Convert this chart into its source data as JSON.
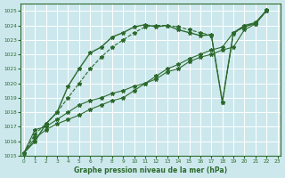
{
  "bg_color": "#cce8ed",
  "grid_color": "#ffffff",
  "line_color": "#2d6a2d",
  "xlabel": "Graphe pression niveau de la mer (hPa)",
  "ylim": [
    1015,
    1025.5
  ],
  "xlim": [
    -0.3,
    23.3
  ],
  "yticks": [
    1015,
    1016,
    1017,
    1018,
    1019,
    1020,
    1021,
    1022,
    1023,
    1024,
    1025
  ],
  "xticks": [
    0,
    1,
    2,
    3,
    4,
    5,
    6,
    7,
    8,
    9,
    10,
    11,
    12,
    13,
    14,
    15,
    16,
    17,
    18,
    19,
    20,
    21,
    22,
    23
  ],
  "s1_x": [
    0,
    1,
    2,
    3,
    4,
    5,
    6,
    7,
    8,
    9,
    10,
    11,
    12,
    13,
    14,
    15,
    16,
    17,
    18,
    19,
    20,
    21,
    22
  ],
  "s1_y": [
    1015.2,
    1016.0,
    1017.2,
    1018.0,
    1019.8,
    1021.0,
    1022.1,
    1022.5,
    1023.2,
    1023.5,
    1023.9,
    1024.05,
    1023.9,
    1024.0,
    1023.7,
    1023.5,
    1023.3,
    1023.35,
    1018.7,
    1023.5,
    1023.9,
    1024.15,
    1025.05
  ],
  "s2_x": [
    0,
    1,
    2,
    3,
    4,
    5,
    6,
    7,
    8,
    9,
    10,
    11,
    12,
    13,
    14,
    15,
    16,
    17,
    18,
    19,
    20,
    21,
    22
  ],
  "s2_y": [
    1015.2,
    1016.5,
    1017.2,
    1018.0,
    1019.0,
    1020.0,
    1021.0,
    1021.8,
    1022.5,
    1023.0,
    1023.5,
    1023.9,
    1024.0,
    1024.0,
    1023.9,
    1023.7,
    1023.5,
    1023.3,
    1018.7,
    1023.4,
    1024.0,
    1024.1,
    1025.05
  ],
  "s3_x": [
    0,
    1,
    2,
    3,
    4,
    5,
    6,
    7,
    8,
    9,
    10,
    11,
    12,
    13,
    14,
    15,
    16,
    17,
    18,
    19,
    20,
    21,
    22
  ],
  "s3_y": [
    1015.2,
    1016.2,
    1016.8,
    1017.2,
    1017.5,
    1017.8,
    1018.2,
    1018.5,
    1018.8,
    1019.0,
    1019.5,
    1020.0,
    1020.5,
    1021.0,
    1021.3,
    1021.7,
    1022.0,
    1022.3,
    1022.5,
    1023.5,
    1024.0,
    1024.2,
    1025.0
  ],
  "s4_x": [
    0,
    1,
    2,
    3,
    4,
    5,
    6,
    7,
    8,
    9,
    10,
    11,
    12,
    13,
    14,
    15,
    16,
    17,
    18,
    19,
    20,
    21,
    22
  ],
  "s4_y": [
    1015.2,
    1016.8,
    1017.0,
    1017.5,
    1018.0,
    1018.5,
    1018.8,
    1019.0,
    1019.3,
    1019.5,
    1019.8,
    1020.0,
    1020.3,
    1020.8,
    1021.0,
    1021.5,
    1021.8,
    1022.0,
    1022.3,
    1022.5,
    1023.7,
    1024.1,
    1025.0
  ]
}
